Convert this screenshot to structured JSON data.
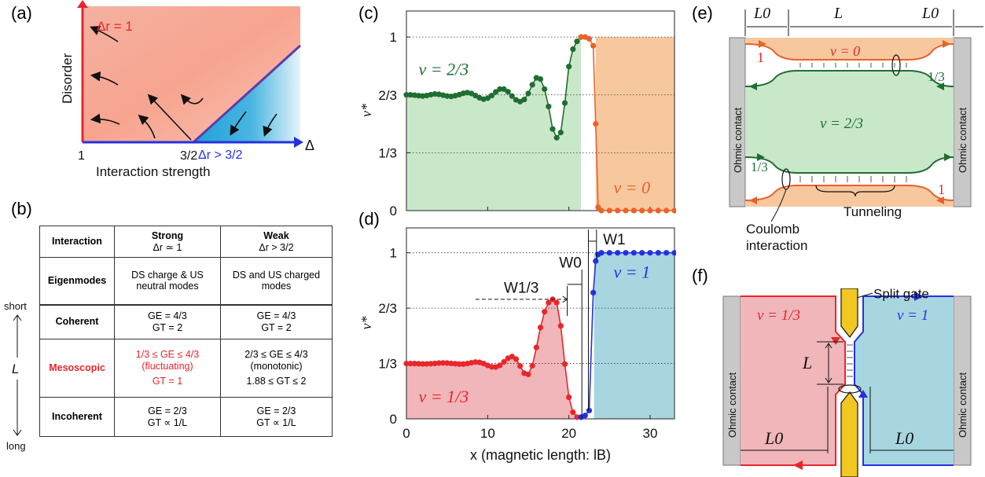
{
  "panel_labels": {
    "a": "(a)",
    "b": "(b)",
    "c": "(c)",
    "d": "(d)",
    "e": "(e)",
    "f": "(f)"
  },
  "colors": {
    "red": "#e8262b",
    "blue": "#2431e0",
    "green": "#1e6e32",
    "orange": "#e8622a",
    "salmon": "#f6a58f",
    "sky": "#29a8dc",
    "greenfill": "#c9e8c9",
    "orangefill": "#f7c79e",
    "pinkfill": "#f0b6b9",
    "cyanfill": "#a8d6e0",
    "gold": "#f3c722"
  },
  "panel_a": {
    "ylabel": "Disorder",
    "xlabel": "Interaction strength",
    "delta": "Δ",
    "tick_1": "1",
    "tick_3_2": "3/2",
    "label_red": "Δr = 1",
    "label_blue": "Δr > 3/2"
  },
  "table": {
    "headers": [
      "Interaction",
      "Strong",
      "Δr ≃ 1",
      "Weak",
      "Δr > 3/2"
    ],
    "eigen": {
      "label": "Eigenmodes",
      "strong": "DS charge & US neutral modes",
      "weak": "DS and US charged modes"
    },
    "coherent": {
      "label": "Coherent",
      "strong_ge": "GE = 4/3",
      "strong_gt": "GT = 2",
      "weak_ge": "GE = 4/3",
      "weak_gt": "GT = 2"
    },
    "meso": {
      "label": "Mesoscopic",
      "strong_ge": "1/3 ≤ GE ≤ 4/3",
      "strong_note": "(fluctuating)",
      "strong_gt": "GT = 1",
      "weak_ge": "2/3 ≤ GE ≤ 4/3",
      "weak_note": "(monotonic)",
      "weak_gt": "1.88 ≤ GT ≤ 2"
    },
    "incoh": {
      "label": "Incoherent",
      "strong_ge": "GE = 2/3",
      "strong_gt": "GT ∝ 1/L",
      "weak_ge": "GE = 2/3",
      "weak_gt": "GT ∝ 1/L"
    },
    "side": {
      "short": "short",
      "long": "long",
      "L": "L"
    }
  },
  "chart_data": [
    {
      "type": "line",
      "panel": "c",
      "ylabel": "ν*",
      "yticks": [
        "0",
        "1/3",
        "2/3",
        "1"
      ],
      "ylim": [
        0,
        1.15
      ],
      "xlim": [
        0,
        33
      ],
      "region_labels": [
        "ν = 2/3",
        "ν = 0"
      ],
      "series": [
        {
          "x": [
            0,
            0.5,
            1,
            1.5,
            2,
            2.5,
            3,
            3.5,
            4,
            4.5,
            5,
            5.5,
            6,
            6.5,
            7,
            7.5,
            8,
            8.5,
            9,
            9.5,
            10,
            10.5,
            11,
            11.5,
            12,
            12.5,
            13,
            13.5,
            14,
            14.5,
            15,
            15.5,
            16,
            16.5,
            17,
            17.5,
            18,
            18.5,
            19,
            19.5,
            20,
            20.5,
            21,
            21.5
          ],
          "values": [
            0.667,
            0.667,
            0.665,
            0.662,
            0.66,
            0.663,
            0.668,
            0.672,
            0.67,
            0.665,
            0.66,
            0.658,
            0.662,
            0.668,
            0.676,
            0.68,
            0.675,
            0.663,
            0.65,
            0.642,
            0.648,
            0.663,
            0.684,
            0.7,
            0.7,
            0.685,
            0.66,
            0.638,
            0.628,
            0.64,
            0.675,
            0.725,
            0.765,
            0.758,
            0.7,
            0.6,
            0.47,
            0.42,
            0.45,
            0.62,
            0.83,
            0.93,
            0.975,
            1.0
          ]
        },
        {
          "x": [
            21.5,
            22,
            22.5,
            23,
            23.3,
            23.6,
            24,
            25,
            26,
            27,
            28,
            29,
            30,
            31,
            32,
            33
          ],
          "values": [
            1.0,
            1.0,
            0.99,
            0.95,
            0.5,
            0.02,
            0.0,
            0.0,
            0.0,
            0.0,
            0.0,
            0.0,
            0.0,
            0.0,
            0.0,
            0.0
          ]
        }
      ]
    },
    {
      "type": "line",
      "panel": "d",
      "ylabel": "ν*",
      "xlabel": "x (magnetic length: lB)",
      "xticks": [
        "0",
        "10",
        "20",
        "30"
      ],
      "yticks": [
        "0",
        "1/3",
        "2/3",
        "1"
      ],
      "ylim": [
        0,
        1.15
      ],
      "xlim": [
        0,
        33
      ],
      "region_labels": [
        "ν = 1/3",
        "ν = 1"
      ],
      "annotations": [
        "W1/3",
        "W0",
        "W1"
      ],
      "series": [
        {
          "x": [
            0,
            0.5,
            1,
            1.5,
            2,
            2.5,
            3,
            3.5,
            4,
            4.5,
            5,
            5.5,
            6,
            6.5,
            7,
            7.5,
            8,
            8.5,
            9,
            9.5,
            10,
            10.5,
            11,
            11.5,
            12,
            12.5,
            13,
            13.5,
            14,
            14.5,
            15,
            15.5,
            16,
            16.5,
            17,
            17.5,
            18,
            18.5,
            19,
            19.5,
            20,
            20.5,
            21,
            21.5
          ],
          "values": [
            0.333,
            0.333,
            0.333,
            0.332,
            0.331,
            0.331,
            0.332,
            0.334,
            0.336,
            0.337,
            0.336,
            0.334,
            0.332,
            0.33,
            0.33,
            0.333,
            0.338,
            0.342,
            0.34,
            0.333,
            0.322,
            0.313,
            0.312,
            0.322,
            0.343,
            0.365,
            0.375,
            0.36,
            0.318,
            0.275,
            0.268,
            0.32,
            0.43,
            0.55,
            0.645,
            0.7,
            0.72,
            0.7,
            0.56,
            0.33,
            0.13,
            0.04,
            0.01,
            0.01
          ]
        },
        {
          "x": [
            21.5,
            22,
            22.5,
            23,
            23.3,
            23.6,
            24,
            25,
            26,
            27,
            28,
            29,
            30,
            31,
            32,
            33
          ],
          "values": [
            0.01,
            0.02,
            0.05,
            0.76,
            0.95,
            0.99,
            1.0,
            1.0,
            1.0,
            1.0,
            1.0,
            1.0,
            1.0,
            1.0,
            1.0,
            1.0
          ]
        }
      ]
    }
  ],
  "panel_e": {
    "L0": "L0",
    "L": "L",
    "nu0": "ν = 0",
    "nu23": "ν = 2/3",
    "one": "1",
    "third": "1/3",
    "ohmic": "Ohmic contact",
    "tunneling": "Tunneling",
    "coulomb1": "Coulomb",
    "coulomb2": "interaction"
  },
  "panel_f": {
    "split_gate": "Split gate",
    "nu13": "ν = 1/3",
    "nu1": "ν = 1",
    "L": "L",
    "L0": "L0",
    "ohmic": "Ohmic contact"
  }
}
